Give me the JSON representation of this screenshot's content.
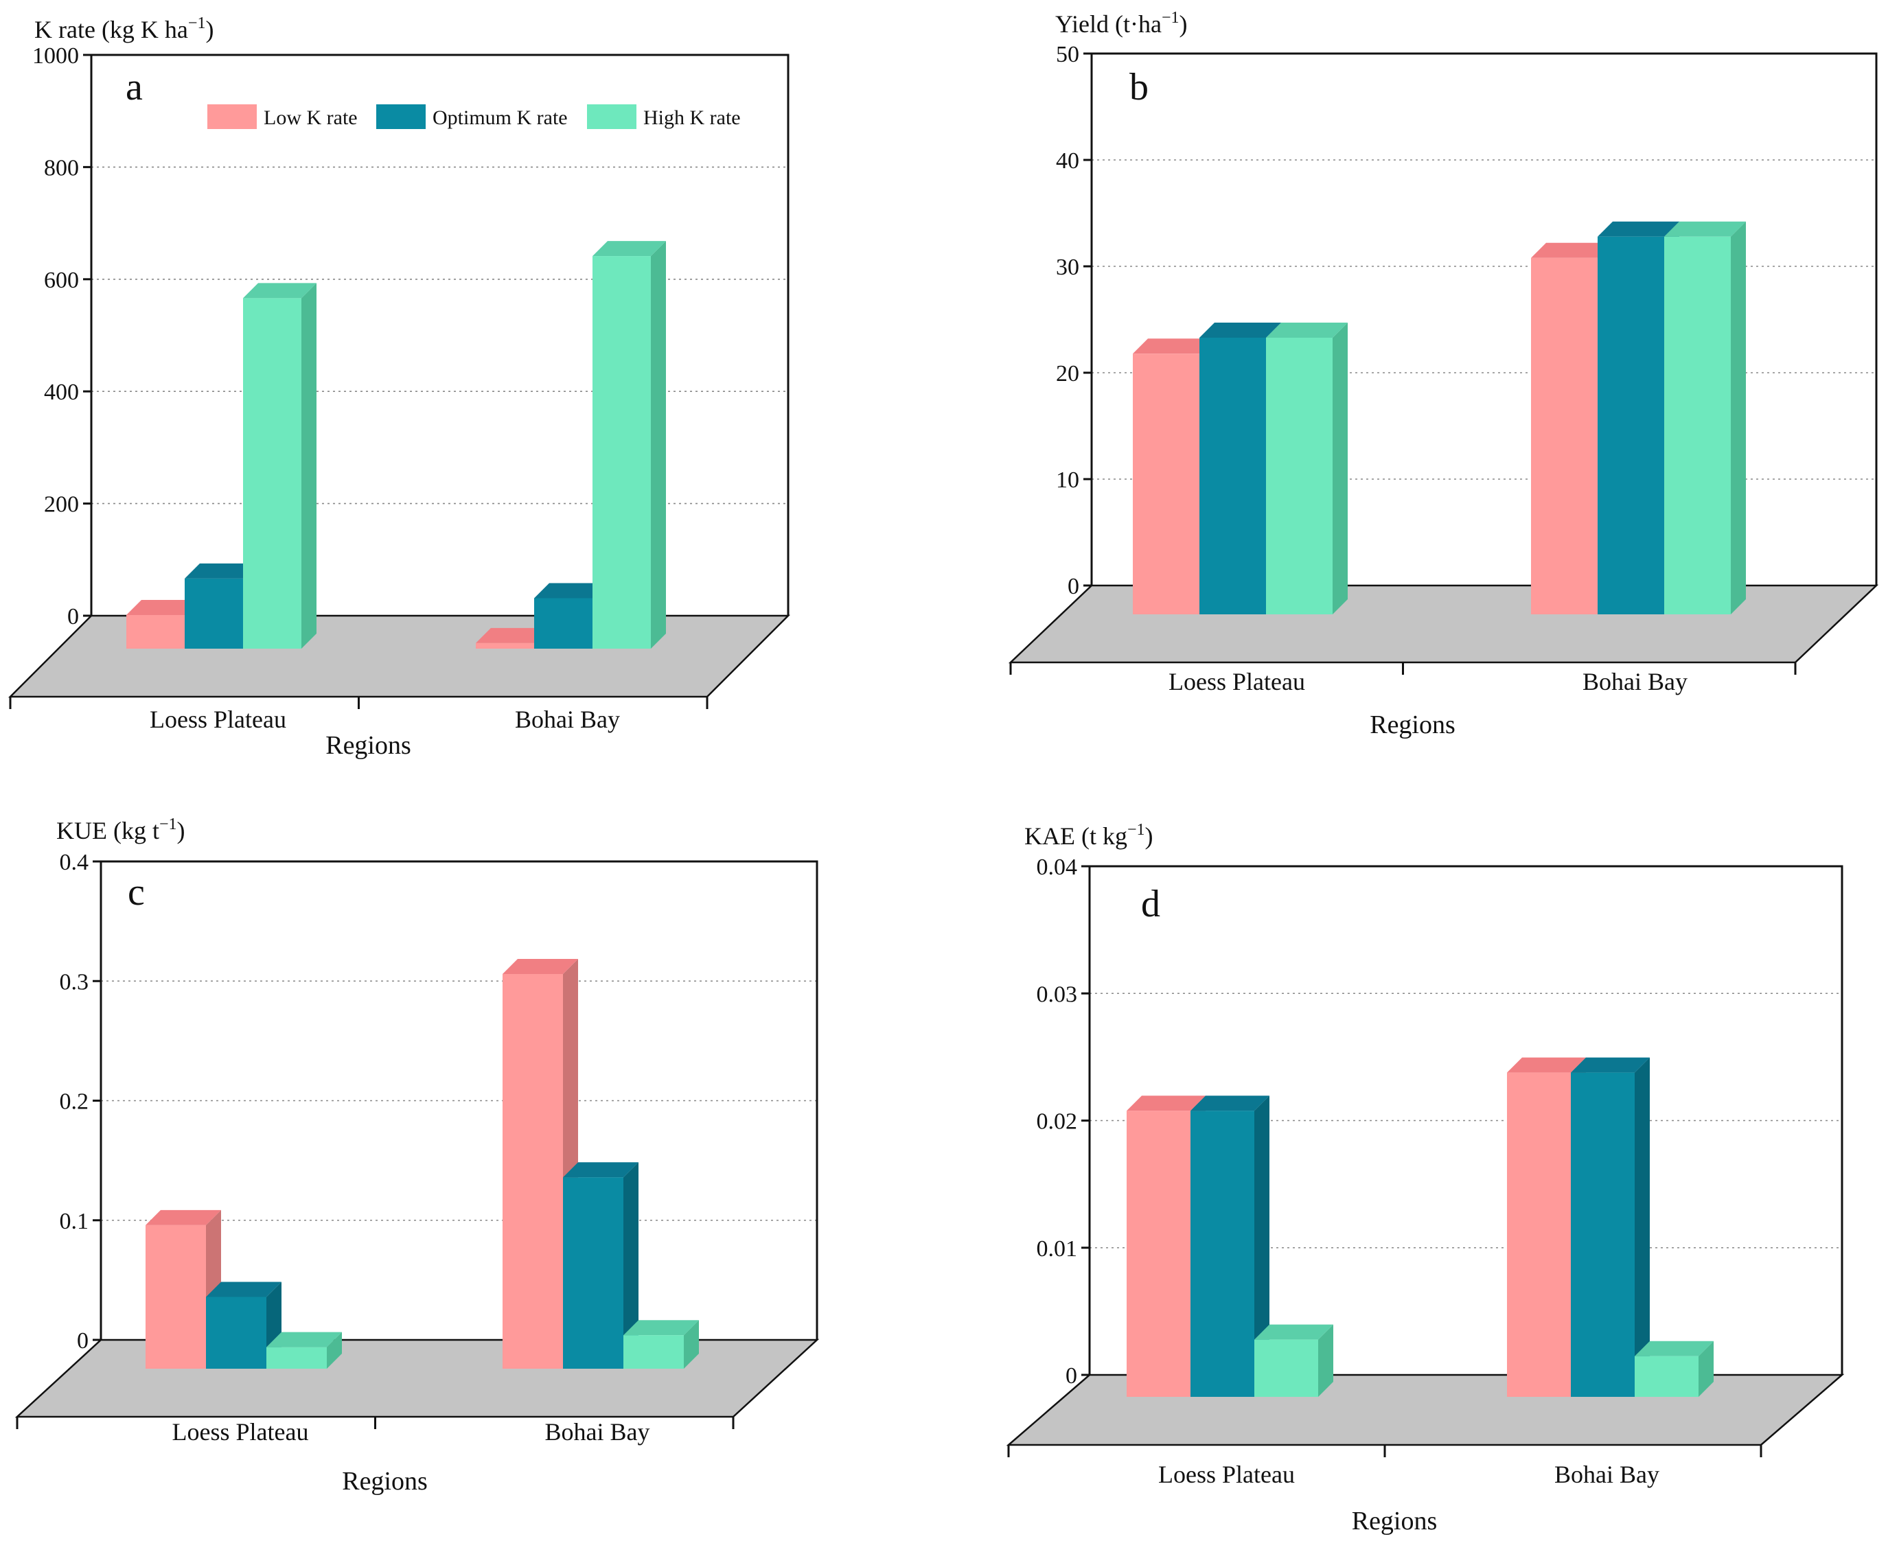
{
  "figure": {
    "legend": [
      {
        "label": "Low K rate",
        "color": "#ff9a9a",
        "side": "#cc7474",
        "top": "#f17f83"
      },
      {
        "label": "Optimum K rate",
        "color": "#0a8ba3",
        "side": "#06667a",
        "top": "#0b7791"
      },
      {
        "label": "High K rate",
        "color": "#6ee8bd",
        "side": "#4cbb94",
        "top": "#5bcfa9"
      }
    ]
  },
  "chart_data": [
    {
      "type": "bar",
      "panel": "a",
      "title": "",
      "ylabel": "K rate (kg K ha",
      "ylabel_sup": "−1",
      "ylabel_close": ")",
      "xlabel": "Regions",
      "categories": [
        "Loess Plateau",
        "Bohai Bay"
      ],
      "ylim": [
        0,
        1000
      ],
      "yticks": [
        0,
        200,
        400,
        600,
        800,
        1000
      ],
      "grid": true,
      "legend": "top",
      "series": [
        {
          "name": "Low K rate",
          "values": [
            60,
            10
          ]
        },
        {
          "name": "Optimum K rate",
          "values": [
            125,
            90
          ]
        },
        {
          "name": "High K rate",
          "values": [
            625,
            700
          ]
        }
      ]
    },
    {
      "type": "bar",
      "panel": "b",
      "title": "",
      "ylabel": "Yield (t·ha",
      "ylabel_sup": "−1",
      "ylabel_close": ")",
      "xlabel": "Regions",
      "categories": [
        "Loess Plateau",
        "Bohai Bay"
      ],
      "ylim": [
        0,
        50
      ],
      "yticks": [
        0,
        10,
        20,
        30,
        40,
        50
      ],
      "grid": true,
      "legend": "none",
      "series": [
        {
          "name": "Low K rate",
          "values": [
            24.5,
            33.5
          ]
        },
        {
          "name": "Optimum K rate",
          "values": [
            26,
            35.5
          ]
        },
        {
          "name": "High K rate",
          "values": [
            26,
            35.5
          ]
        }
      ]
    },
    {
      "type": "bar",
      "panel": "c",
      "title": "",
      "ylabel": "KUE (kg t",
      "ylabel_sup": "−1",
      "ylabel_close": ")",
      "xlabel": "Regions",
      "categories": [
        "Loess Plateau",
        "Bohai Bay"
      ],
      "ylim": [
        0,
        0.4
      ],
      "yticks": [
        0,
        0.1,
        0.2,
        0.3,
        0.4
      ],
      "grid": true,
      "legend": "none",
      "series": [
        {
          "name": "Low K rate",
          "values": [
            0.12,
            0.33
          ]
        },
        {
          "name": "Optimum K rate",
          "values": [
            0.06,
            0.16
          ]
        },
        {
          "name": "High K rate",
          "values": [
            0.018,
            0.028
          ]
        }
      ]
    },
    {
      "type": "bar",
      "panel": "d",
      "title": "",
      "ylabel": "KAE (t kg",
      "ylabel_sup": "−1",
      "ylabel_close": ")",
      "xlabel": "Regions",
      "categories": [
        "Loess Plateau",
        "Bohai Bay"
      ],
      "ylim": [
        0,
        0.04
      ],
      "yticks": [
        0,
        0.01,
        0.02,
        0.03,
        0.04
      ],
      "grid": true,
      "legend": "none",
      "series": [
        {
          "name": "Low K rate",
          "values": [
            0.0225,
            0.0255
          ]
        },
        {
          "name": "Optimum K rate",
          "values": [
            0.0225,
            0.0255
          ]
        },
        {
          "name": "High K rate",
          "values": [
            0.0045,
            0.0032
          ]
        }
      ]
    }
  ]
}
